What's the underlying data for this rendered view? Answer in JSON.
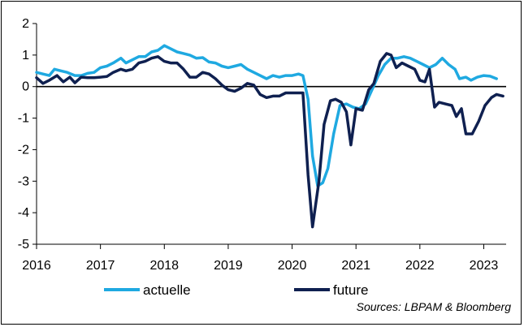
{
  "chart_data": {
    "type": "line",
    "title": "",
    "xlabel": "",
    "ylabel": "",
    "xlim": [
      2016.0,
      2023.35
    ],
    "ylim": [
      -5,
      2
    ],
    "y_ticks": [
      "2",
      "1",
      "0",
      "-1",
      "-2",
      "-3",
      "-4",
      "-5"
    ],
    "x_ticks": [
      "2016",
      "2017",
      "2018",
      "2019",
      "2020",
      "2021",
      "2022",
      "2023"
    ],
    "grid": false,
    "legend": "bottom",
    "source": "Sources: LBPAM & Bloomberg",
    "series": [
      {
        "name": "actuelle",
        "color": "#1fa9e1",
        "points": [
          [
            2016.0,
            0.45
          ],
          [
            2016.1,
            0.4
          ],
          [
            2016.2,
            0.35
          ],
          [
            2016.28,
            0.55
          ],
          [
            2016.38,
            0.5
          ],
          [
            2016.48,
            0.45
          ],
          [
            2016.6,
            0.35
          ],
          [
            2016.7,
            0.35
          ],
          [
            2016.8,
            0.42
          ],
          [
            2016.9,
            0.45
          ],
          [
            2017.0,
            0.6
          ],
          [
            2017.1,
            0.65
          ],
          [
            2017.2,
            0.75
          ],
          [
            2017.32,
            0.9
          ],
          [
            2017.4,
            0.75
          ],
          [
            2017.5,
            0.85
          ],
          [
            2017.6,
            0.95
          ],
          [
            2017.7,
            0.95
          ],
          [
            2017.8,
            1.1
          ],
          [
            2017.9,
            1.15
          ],
          [
            2018.0,
            1.3
          ],
          [
            2018.1,
            1.2
          ],
          [
            2018.2,
            1.1
          ],
          [
            2018.3,
            1.05
          ],
          [
            2018.4,
            1.0
          ],
          [
            2018.5,
            0.9
          ],
          [
            2018.6,
            0.92
          ],
          [
            2018.7,
            0.78
          ],
          [
            2018.8,
            0.75
          ],
          [
            2018.9,
            0.65
          ],
          [
            2019.0,
            0.6
          ],
          [
            2019.1,
            0.65
          ],
          [
            2019.2,
            0.7
          ],
          [
            2019.3,
            0.55
          ],
          [
            2019.4,
            0.45
          ],
          [
            2019.5,
            0.35
          ],
          [
            2019.6,
            0.25
          ],
          [
            2019.7,
            0.35
          ],
          [
            2019.8,
            0.3
          ],
          [
            2019.9,
            0.35
          ],
          [
            2020.0,
            0.35
          ],
          [
            2020.1,
            0.4
          ],
          [
            2020.17,
            0.35
          ],
          [
            2020.25,
            -0.4
          ],
          [
            2020.32,
            -2.2
          ],
          [
            2020.4,
            -3.15
          ],
          [
            2020.48,
            -3.05
          ],
          [
            2020.56,
            -2.6
          ],
          [
            2020.65,
            -1.5
          ],
          [
            2020.75,
            -0.6
          ],
          [
            2020.85,
            -0.55
          ],
          [
            2020.95,
            -0.65
          ],
          [
            2021.05,
            -0.7
          ],
          [
            2021.15,
            -0.55
          ],
          [
            2021.25,
            -0.1
          ],
          [
            2021.35,
            0.35
          ],
          [
            2021.45,
            0.7
          ],
          [
            2021.55,
            0.9
          ],
          [
            2021.65,
            0.9
          ],
          [
            2021.75,
            0.95
          ],
          [
            2021.85,
            0.9
          ],
          [
            2021.95,
            0.8
          ],
          [
            2022.05,
            0.7
          ],
          [
            2022.15,
            0.6
          ],
          [
            2022.25,
            0.7
          ],
          [
            2022.35,
            0.9
          ],
          [
            2022.45,
            0.7
          ],
          [
            2022.55,
            0.55
          ],
          [
            2022.62,
            0.25
          ],
          [
            2022.72,
            0.3
          ],
          [
            2022.8,
            0.2
          ],
          [
            2022.9,
            0.3
          ],
          [
            2023.0,
            0.35
          ],
          [
            2023.1,
            0.33
          ],
          [
            2023.2,
            0.25
          ]
        ]
      },
      {
        "name": "future",
        "color": "#0f2050",
        "points": [
          [
            2016.0,
            0.28
          ],
          [
            2016.1,
            0.1
          ],
          [
            2016.2,
            0.2
          ],
          [
            2016.32,
            0.35
          ],
          [
            2016.42,
            0.15
          ],
          [
            2016.52,
            0.3
          ],
          [
            2016.6,
            0.12
          ],
          [
            2016.7,
            0.3
          ],
          [
            2016.8,
            0.28
          ],
          [
            2016.9,
            0.28
          ],
          [
            2017.0,
            0.3
          ],
          [
            2017.1,
            0.32
          ],
          [
            2017.2,
            0.45
          ],
          [
            2017.32,
            0.55
          ],
          [
            2017.4,
            0.5
          ],
          [
            2017.5,
            0.55
          ],
          [
            2017.6,
            0.75
          ],
          [
            2017.7,
            0.8
          ],
          [
            2017.8,
            0.9
          ],
          [
            2017.9,
            0.95
          ],
          [
            2018.0,
            0.8
          ],
          [
            2018.1,
            0.75
          ],
          [
            2018.2,
            0.75
          ],
          [
            2018.3,
            0.55
          ],
          [
            2018.4,
            0.3
          ],
          [
            2018.5,
            0.3
          ],
          [
            2018.6,
            0.45
          ],
          [
            2018.7,
            0.4
          ],
          [
            2018.8,
            0.25
          ],
          [
            2018.9,
            0.05
          ],
          [
            2019.0,
            -0.1
          ],
          [
            2019.1,
            -0.15
          ],
          [
            2019.2,
            -0.05
          ],
          [
            2019.3,
            0.1
          ],
          [
            2019.4,
            0.05
          ],
          [
            2019.5,
            -0.25
          ],
          [
            2019.6,
            -0.35
          ],
          [
            2019.7,
            -0.3
          ],
          [
            2019.8,
            -0.3
          ],
          [
            2019.9,
            -0.2
          ],
          [
            2020.0,
            -0.2
          ],
          [
            2020.1,
            -0.2
          ],
          [
            2020.17,
            -0.2
          ],
          [
            2020.25,
            -2.8
          ],
          [
            2020.32,
            -4.45
          ],
          [
            2020.42,
            -3.0
          ],
          [
            2020.5,
            -1.2
          ],
          [
            2020.6,
            -0.45
          ],
          [
            2020.68,
            -0.4
          ],
          [
            2020.77,
            -0.5
          ],
          [
            2020.85,
            -0.8
          ],
          [
            2020.92,
            -1.85
          ],
          [
            2021.0,
            -0.7
          ],
          [
            2021.1,
            -0.75
          ],
          [
            2021.2,
            -0.1
          ],
          [
            2021.28,
            0.1
          ],
          [
            2021.38,
            0.8
          ],
          [
            2021.48,
            1.05
          ],
          [
            2021.55,
            1.0
          ],
          [
            2021.63,
            0.6
          ],
          [
            2021.72,
            0.75
          ],
          [
            2021.82,
            0.65
          ],
          [
            2021.92,
            0.55
          ],
          [
            2022.0,
            0.2
          ],
          [
            2022.08,
            0.15
          ],
          [
            2022.15,
            0.55
          ],
          [
            2022.23,
            -0.65
          ],
          [
            2022.3,
            -0.5
          ],
          [
            2022.4,
            -0.55
          ],
          [
            2022.5,
            -0.6
          ],
          [
            2022.57,
            -0.95
          ],
          [
            2022.65,
            -0.7
          ],
          [
            2022.72,
            -1.5
          ],
          [
            2022.82,
            -1.5
          ],
          [
            2022.92,
            -1.1
          ],
          [
            2023.02,
            -0.6
          ],
          [
            2023.12,
            -0.35
          ],
          [
            2023.2,
            -0.25
          ],
          [
            2023.3,
            -0.3
          ]
        ]
      }
    ]
  },
  "legend": {
    "items": [
      {
        "label": "actuelle",
        "color": "#1fa9e1"
      },
      {
        "label": "future",
        "color": "#0f2050"
      }
    ]
  },
  "source_text": "Sources: LBPAM & Bloomberg"
}
